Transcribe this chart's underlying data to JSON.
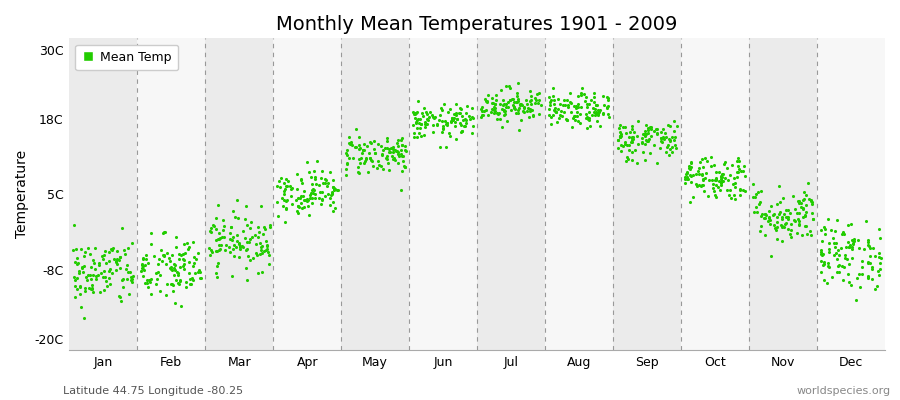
{
  "title": "Monthly Mean Temperatures 1901 - 2009",
  "ylabel": "Temperature",
  "yticks": [
    -20,
    -8,
    5,
    18,
    30
  ],
  "ytick_labels": [
    "-20C",
    "-8C",
    "5C",
    "18C",
    "30C"
  ],
  "ylim": [
    -22,
    32
  ],
  "months": [
    "Jan",
    "Feb",
    "Mar",
    "Apr",
    "May",
    "Jun",
    "Jul",
    "Aug",
    "Sep",
    "Oct",
    "Nov",
    "Dec"
  ],
  "dot_color": "#22cc00",
  "band_colors": [
    "#ebebeb",
    "#f7f7f7"
  ],
  "legend_label": "Mean Temp",
  "subtitle_left": "Latitude 44.75 Longitude -80.25",
  "subtitle_right": "worldspecies.org",
  "n_years": 109,
  "monthly_means": [
    -8.5,
    -8.0,
    -3.0,
    5.5,
    12.0,
    17.5,
    20.5,
    19.5,
    14.5,
    8.0,
    1.5,
    -5.5
  ],
  "monthly_stds": [
    3.0,
    3.0,
    2.5,
    2.0,
    1.8,
    1.5,
    1.5,
    1.5,
    1.8,
    2.0,
    2.5,
    3.0
  ],
  "seed": 42
}
